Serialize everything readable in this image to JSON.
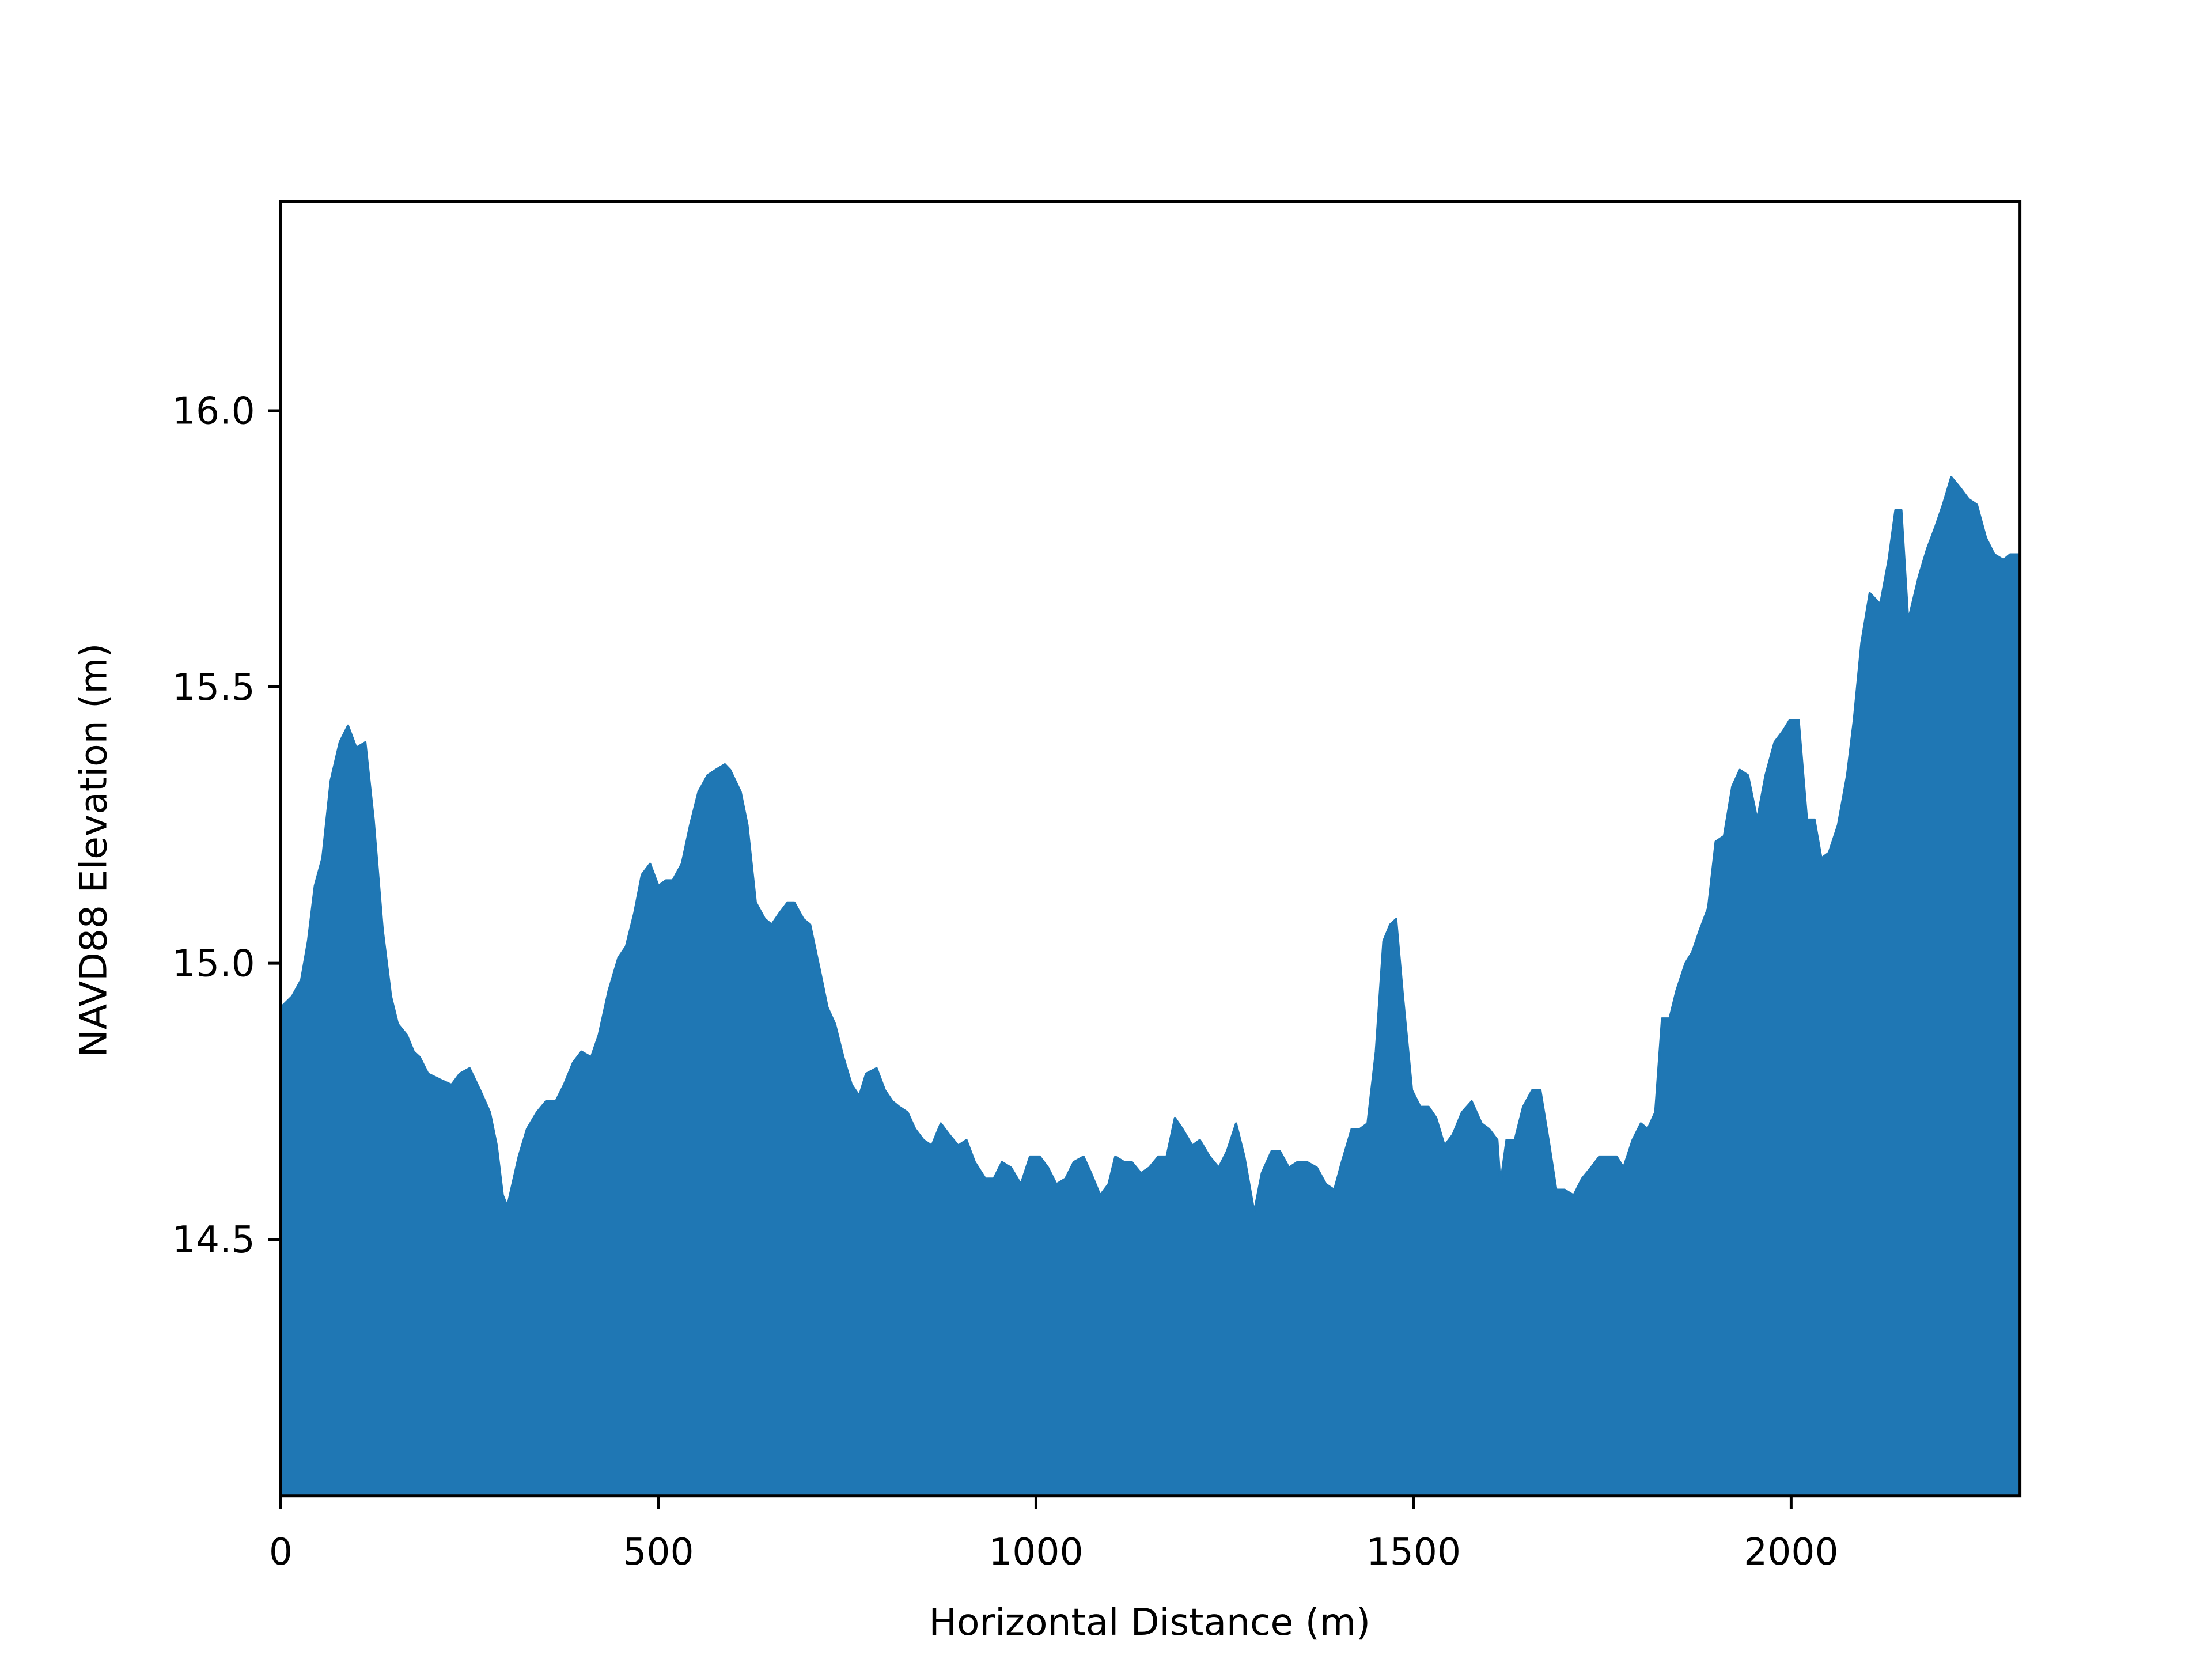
{
  "chart_data": {
    "type": "area",
    "xlabel": "Horizontal Distance (m)",
    "ylabel": "NAVD88 Elevation (m)",
    "color": "#1f77b4",
    "xlim": [
      0,
      2303
    ],
    "ylim": [
      14.036,
      16.378
    ],
    "xticks": [
      0,
      500,
      1000,
      1500,
      2000
    ],
    "yticks": [
      14.5,
      {
        "value": 15.0,
        "label": "15.0"
      },
      15.5,
      {
        "value": 16.0,
        "label": "16.0"
      }
    ],
    "x": [
      0,
      15,
      27,
      36,
      45,
      55,
      66,
      78,
      89,
      100,
      112,
      123,
      135,
      146,
      155,
      167,
      176,
      184,
      195,
      210,
      226,
      237,
      250,
      264,
      277,
      286,
      294,
      300,
      305,
      315,
      326,
      339,
      351,
      364,
      375,
      387,
      398,
      411,
      421,
      434,
      447,
      457,
      468,
      478,
      489,
      500,
      510,
      519,
      531,
      542,
      553,
      565,
      576,
      588,
      595,
      609,
      618,
      629,
      641,
      650,
      660,
      671,
      680,
      692,
      701,
      715,
      724,
      734,
      745,
      756,
      766,
      775,
      789,
      800,
      810,
      819,
      830,
      840,
      851,
      862,
      874,
      885,
      897,
      908,
      919,
      933,
      944,
      955,
      967,
      980,
      992,
      1005,
      1016,
      1027,
      1039,
      1050,
      1063,
      1073,
      1085,
      1096,
      1105,
      1117,
      1127,
      1139,
      1150,
      1162,
      1173,
      1184,
      1194,
      1207,
      1217,
      1230,
      1242,
      1253,
      1265,
      1276,
      1289,
      1299,
      1312,
      1323,
      1335,
      1346,
      1359,
      1372,
      1384,
      1395,
      1405,
      1418,
      1429,
      1439,
      1450,
      1460,
      1469,
      1477,
      1486,
      1498,
      1509,
      1520,
      1530,
      1541,
      1552,
      1564,
      1577,
      1590,
      1600,
      1611,
      1615,
      1623,
      1634,
      1645,
      1657,
      1668,
      1680,
      1689,
      1700,
      1712,
      1723,
      1735,
      1746,
      1757,
      1769,
      1778,
      1790,
      1801,
      1810,
      1820,
      1829,
      1839,
      1848,
      1860,
      1869,
      1879,
      1890,
      1900,
      1911,
      1922,
      1932,
      1943,
      1955,
      1966,
      1978,
      1989,
      1998,
      2010,
      2021,
      2031,
      2040,
      2050,
      2062,
      2074,
      2083,
      2093,
      2104,
      2118,
      2129,
      2138,
      2146,
      2155,
      2169,
      2180,
      2191,
      2201,
      2212,
      2224,
      2235,
      2246,
      2258,
      2269,
      2281,
      2290,
      2303
    ],
    "y": [
      14.92,
      14.94,
      14.97,
      15.04,
      15.14,
      15.19,
      15.33,
      15.4,
      15.43,
      15.39,
      15.4,
      15.26,
      15.06,
      14.94,
      14.89,
      14.87,
      14.84,
      14.83,
      14.8,
      14.79,
      14.78,
      14.8,
      14.81,
      14.77,
      14.73,
      14.67,
      14.58,
      14.56,
      14.59,
      14.65,
      14.7,
      14.73,
      14.75,
      14.75,
      14.78,
      14.82,
      14.84,
      14.83,
      14.87,
      14.95,
      15.01,
      15.03,
      15.09,
      15.16,
      15.18,
      15.14,
      15.15,
      15.15,
      15.18,
      15.25,
      15.31,
      15.34,
      15.35,
      15.36,
      15.35,
      15.31,
      15.25,
      15.11,
      15.08,
      15.07,
      15.09,
      15.11,
      15.11,
      15.08,
      15.07,
      14.98,
      14.92,
      14.89,
      14.83,
      14.78,
      14.76,
      14.8,
      14.81,
      14.77,
      14.75,
      14.74,
      14.73,
      14.7,
      14.68,
      14.67,
      14.71,
      14.69,
      14.67,
      14.68,
      14.64,
      14.61,
      14.61,
      14.64,
      14.63,
      14.6,
      14.65,
      14.65,
      14.63,
      14.6,
      14.61,
      14.64,
      14.65,
      14.62,
      14.58,
      14.6,
      14.65,
      14.64,
      14.64,
      14.62,
      14.63,
      14.65,
      14.65,
      14.72,
      14.7,
      14.67,
      14.68,
      14.65,
      14.63,
      14.66,
      14.71,
      14.65,
      14.55,
      14.62,
      14.66,
      14.66,
      14.63,
      14.64,
      14.64,
      14.63,
      14.6,
      14.59,
      14.64,
      14.7,
      14.7,
      14.71,
      14.84,
      15.04,
      15.07,
      15.08,
      14.94,
      14.77,
      14.74,
      14.74,
      14.72,
      14.67,
      14.69,
      14.73,
      14.75,
      14.71,
      14.7,
      14.68,
      14.6,
      14.68,
      14.68,
      14.74,
      14.77,
      14.77,
      14.67,
      14.59,
      14.59,
      14.58,
      14.61,
      14.63,
      14.65,
      14.65,
      14.65,
      14.63,
      14.68,
      14.71,
      14.7,
      14.73,
      14.9,
      14.9,
      14.95,
      15.0,
      15.02,
      15.06,
      15.1,
      15.22,
      15.23,
      15.32,
      15.35,
      15.34,
      15.26,
      15.34,
      15.4,
      15.42,
      15.44,
      15.44,
      15.26,
      15.26,
      15.19,
      15.2,
      15.25,
      15.34,
      15.44,
      15.58,
      15.67,
      15.65,
      15.73,
      15.82,
      15.82,
      15.62,
      15.7,
      15.75,
      15.79,
      15.83,
      15.88,
      15.86,
      15.84,
      15.83,
      15.77,
      15.74,
      15.73,
      15.74,
      15.74
    ]
  }
}
